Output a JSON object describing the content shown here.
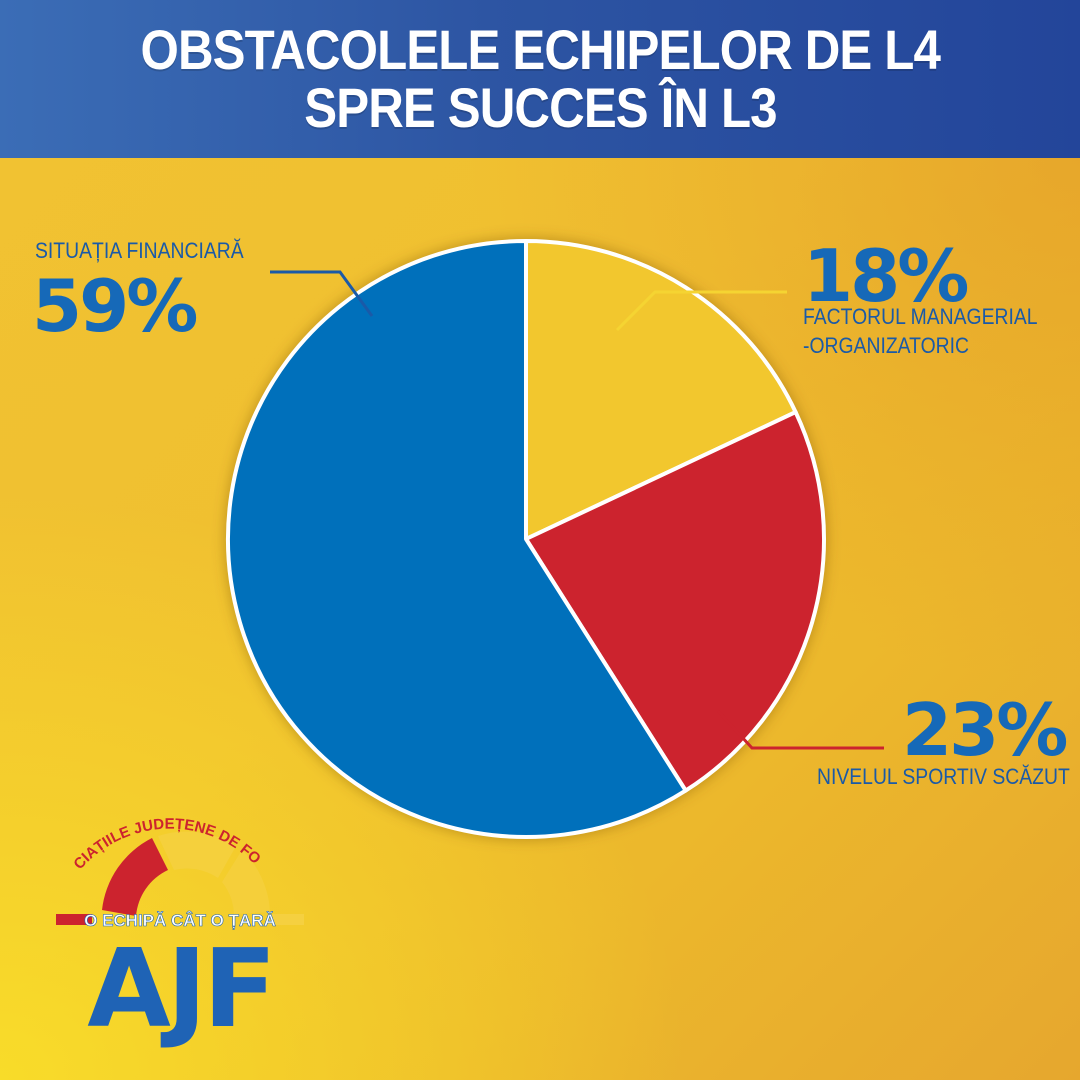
{
  "header": {
    "title_line1": "OBSTACOLELE ECHIPELOR DE L4",
    "title_line2": "SPRE SUCCES ÎN L3"
  },
  "chart_data": {
    "type": "pie",
    "title": "OBSTACOLELE ECHIPELOR DE L4 SPRE SUCCES ÎN L3",
    "slices": [
      {
        "label": "FACTORUL MANAGERIAL -ORGANIZATORIC",
        "value": 18,
        "value_label": "18%",
        "color": "#f2c72e"
      },
      {
        "label": "NIVELUL SPORTIV SCĂZUT",
        "value": 23,
        "value_label": "23%",
        "color": "#cc232e"
      },
      {
        "label": "SITUAȚIA FINANCIARĂ",
        "value": 59,
        "value_label": "59%",
        "color": "#0070bb"
      }
    ],
    "start_angle": "12 o'clock, clockwise",
    "legend": "none (callout labels)"
  },
  "labels": {
    "financial_name": "SITUAȚIA FINANCIARĂ",
    "financial_pct": "59%",
    "managerial_pct": "18%",
    "managerial_line1": "FACTORUL MANAGERIAL",
    "managerial_line2": "-ORGANIZATORIC",
    "sport_pct": "23%",
    "sport_name": "NIVELUL SPORTIV SCĂZUT"
  },
  "logo": {
    "arc_text": "ASOCIAȚIILE JUDEȚENE DE FOTBAL",
    "tagline": "O ECHIPĂ CÂT O ȚARĂ",
    "letters": "AJF",
    "colors": {
      "blue": "#1f63b5",
      "red": "#cc232e",
      "yellow": "#f2c72e"
    }
  }
}
